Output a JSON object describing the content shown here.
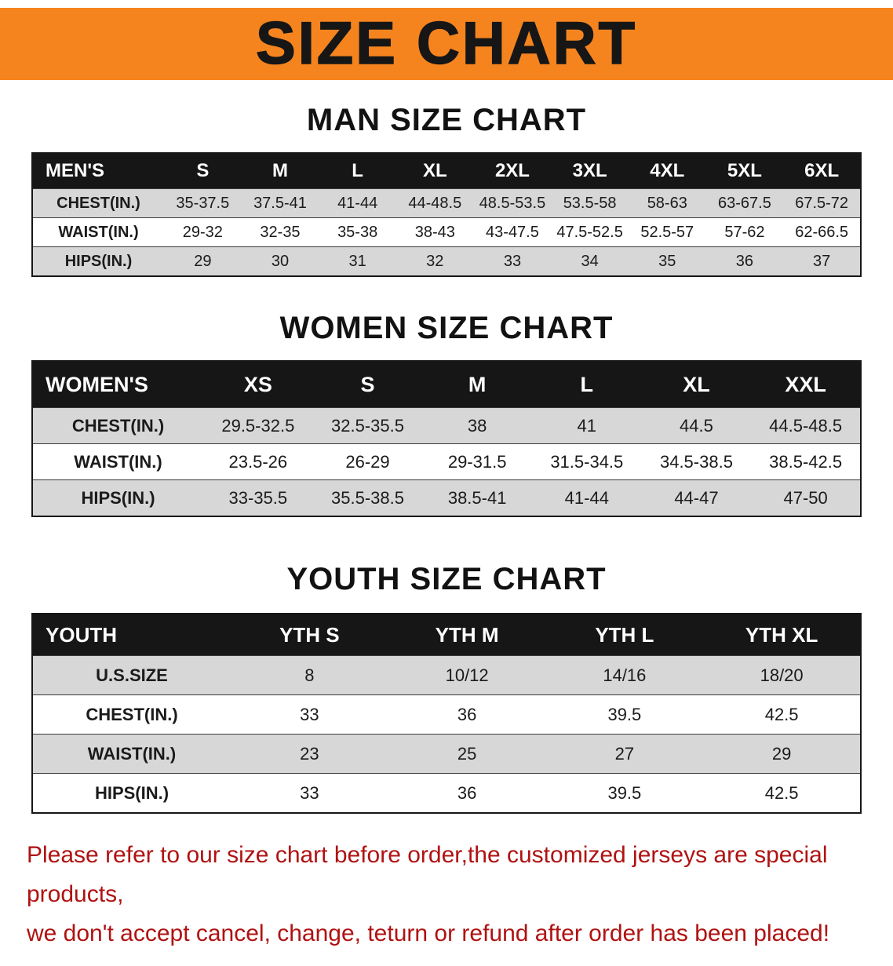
{
  "banner": {
    "title": "SIZE CHART",
    "bg_color": "#F5841F",
    "text_color": "#161616"
  },
  "sections": [
    {
      "heading": "MAN SIZE CHART",
      "table": {
        "header_label": "MEN'S",
        "columns": [
          "S",
          "M",
          "L",
          "XL",
          "2XL",
          "3XL",
          "4XL",
          "5XL",
          "6XL"
        ],
        "rows": [
          {
            "label": "CHEST(IN.)",
            "values": [
              "35-37.5",
              "37.5-41",
              "41-44",
              "44-48.5",
              "48.5-53.5",
              "53.5-58",
              "58-63",
              "63-67.5",
              "67.5-72"
            ]
          },
          {
            "label": "WAIST(IN.)",
            "values": [
              "29-32",
              "32-35",
              "35-38",
              "38-43",
              "43-47.5",
              "47.5-52.5",
              "52.5-57",
              "57-62",
              "62-66.5"
            ]
          },
          {
            "label": "HIPS(IN.)",
            "values": [
              "29",
              "30",
              "31",
              "32",
              "33",
              "34",
              "35",
              "36",
              "37"
            ]
          }
        ]
      }
    },
    {
      "heading": "WOMEN SIZE CHART",
      "table": {
        "header_label": "WOMEN'S",
        "columns": [
          "XS",
          "S",
          "M",
          "L",
          "XL",
          "XXL"
        ],
        "rows": [
          {
            "label": "CHEST(IN.)",
            "values": [
              "29.5-32.5",
              "32.5-35.5",
              "38",
              "41",
              "44.5",
              "44.5-48.5"
            ]
          },
          {
            "label": "WAIST(IN.)",
            "values": [
              "23.5-26",
              "26-29",
              "29-31.5",
              "31.5-34.5",
              "34.5-38.5",
              "38.5-42.5"
            ]
          },
          {
            "label": "HIPS(IN.)",
            "values": [
              "33-35.5",
              "35.5-38.5",
              "38.5-41",
              "41-44",
              "44-47",
              "47-50"
            ]
          }
        ]
      }
    },
    {
      "heading": "YOUTH SIZE CHART",
      "table": {
        "header_label": "YOUTH",
        "columns": [
          "YTH S",
          "YTH M",
          "YTH L",
          "YTH XL"
        ],
        "rows": [
          {
            "label": "U.S.SIZE",
            "values": [
              "8",
              "10/12",
              "14/16",
              "18/20"
            ]
          },
          {
            "label": "CHEST(IN.)",
            "values": [
              "33",
              "36",
              "39.5",
              "42.5"
            ]
          },
          {
            "label": "WAIST(IN.)",
            "values": [
              "23",
              "25",
              "27",
              "29"
            ]
          },
          {
            "label": "HIPS(IN.)",
            "values": [
              "33",
              "36",
              "39.5",
              "42.5"
            ]
          }
        ]
      }
    }
  ],
  "footer": {
    "line1": "Please refer to our size chart before order,the customized jerseys are special products,",
    "line2": "we don't accept cancel, change, teturn or refund after order has been placed!",
    "text_color": "#B01212"
  }
}
